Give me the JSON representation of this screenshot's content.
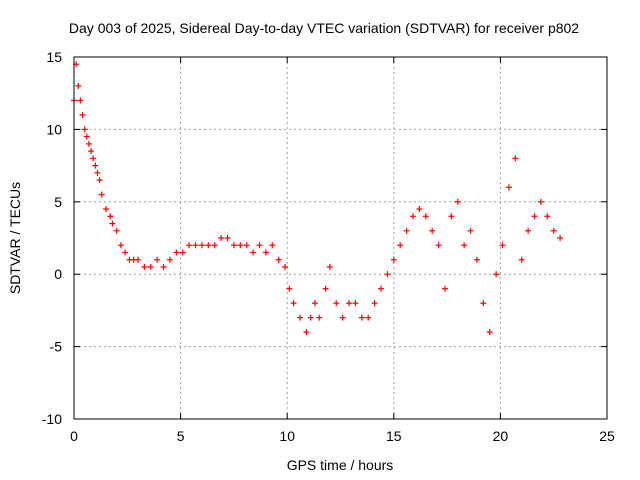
{
  "chart_data": {
    "type": "scatter",
    "title": "Day 003 of 2025, Sidereal Day-to-day VTEC variation (SDTVAR) for receiver p802",
    "xlabel": "GPS time / hours",
    "ylabel": "SDTVAR / TECUs",
    "xlim": [
      0,
      25
    ],
    "ylim": [
      -10,
      15
    ],
    "xticks": [
      0,
      5,
      10,
      15,
      20,
      25
    ],
    "yticks": [
      -10,
      -5,
      0,
      5,
      10,
      15
    ],
    "grid": true,
    "marker": "+",
    "color": "#ff0000",
    "series": [
      {
        "name": "SDTVAR",
        "x": [
          0.0,
          0.1,
          0.2,
          0.3,
          0.4,
          0.5,
          0.6,
          0.7,
          0.8,
          0.9,
          1.0,
          1.1,
          1.2,
          1.3,
          1.5,
          1.7,
          1.8,
          2.0,
          2.2,
          2.4,
          2.6,
          2.8,
          3.0,
          3.3,
          3.6,
          3.9,
          4.2,
          4.5,
          4.8,
          5.1,
          5.4,
          5.7,
          6.0,
          6.3,
          6.6,
          6.9,
          7.2,
          7.5,
          7.8,
          8.1,
          8.4,
          8.7,
          9.0,
          9.3,
          9.6,
          9.9,
          10.1,
          10.3,
          10.6,
          10.9,
          11.1,
          11.3,
          11.5,
          11.8,
          12.0,
          12.3,
          12.6,
          12.9,
          13.2,
          13.5,
          13.8,
          14.1,
          14.4,
          14.7,
          15.0,
          15.3,
          15.6,
          15.9,
          16.2,
          16.5,
          16.8,
          17.1,
          17.4,
          17.7,
          18.0,
          18.3,
          18.6,
          18.9,
          19.2,
          19.5,
          19.8,
          20.1,
          20.4,
          20.7,
          21.0,
          21.3,
          21.6,
          21.9,
          22.2,
          22.5,
          22.8
        ],
        "y": [
          12,
          14.5,
          13,
          12,
          11,
          10,
          9.5,
          9,
          8.5,
          8,
          7.5,
          7,
          6.5,
          5.5,
          4.5,
          4,
          3.5,
          3,
          2,
          1.5,
          1,
          1,
          1,
          0.5,
          0.5,
          1,
          0.5,
          1,
          1.5,
          1.5,
          2,
          2,
          2,
          2,
          2,
          2.5,
          2.5,
          2,
          2,
          2,
          1.5,
          2,
          1.5,
          2,
          1,
          0.5,
          -1,
          -2,
          -3,
          -4,
          -3,
          -2,
          -3,
          -1,
          0.5,
          -2,
          -3,
          -2,
          -2,
          -3,
          -3,
          -2,
          -1,
          0,
          1,
          2,
          3,
          4,
          4.5,
          4,
          3,
          2,
          -1,
          4,
          5,
          2,
          3,
          1,
          -2,
          -4,
          0,
          2,
          6,
          8,
          1,
          3,
          4,
          5,
          4,
          3,
          2.5
        ]
      }
    ]
  }
}
